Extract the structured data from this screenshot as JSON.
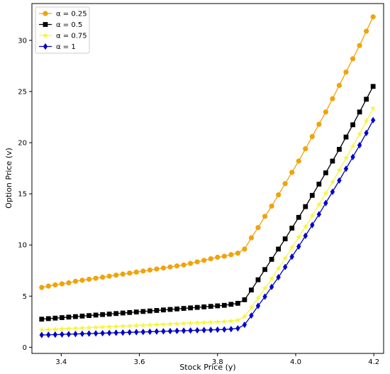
{
  "chart_data": {
    "type": "line",
    "title": "",
    "xlabel": "Stock Price (y)",
    "ylabel": "Option Price (v)",
    "xlim": [
      3.325,
      4.225
    ],
    "ylim": [
      -0.6,
      33.6
    ],
    "xticks": [
      3.4,
      3.6,
      3.8,
      4.0,
      4.2
    ],
    "xtick_labels": [
      "3.4",
      "3.6",
      "3.8",
      "4.0",
      "4.2"
    ],
    "yticks": [
      0,
      5,
      10,
      15,
      20,
      25,
      30
    ],
    "ytick_labels": [
      "0",
      "5",
      "10",
      "15",
      "20",
      "25",
      "30"
    ],
    "grid": false,
    "legend_position": "upper-left",
    "x": [
      3.35,
      3.3673,
      3.3846,
      3.4019,
      3.4192,
      3.4365,
      3.4538,
      3.4712,
      3.4885,
      3.5058,
      3.5231,
      3.5404,
      3.5577,
      3.575,
      3.5923,
      3.6096,
      3.6269,
      3.6442,
      3.6615,
      3.6788,
      3.6962,
      3.7135,
      3.7308,
      3.7481,
      3.7654,
      3.7827,
      3.8,
      3.8173,
      3.8346,
      3.8519,
      3.8692,
      3.8865,
      3.9038,
      3.9212,
      3.9385,
      3.9558,
      3.9731,
      3.9904,
      4.0077,
      4.025,
      4.0423,
      4.0596,
      4.0769,
      4.0942,
      4.1115,
      4.1288,
      4.1462,
      4.1635,
      4.1808,
      4.1981
    ],
    "series": [
      {
        "name": "α = 0.25",
        "color": "#f0a30a",
        "marker": "circle",
        "values": [
          5.85,
          5.98,
          6.1,
          6.2,
          6.3,
          6.45,
          6.55,
          6.65,
          6.75,
          6.85,
          6.95,
          7.05,
          7.15,
          7.25,
          7.35,
          7.45,
          7.55,
          7.65,
          7.75,
          7.85,
          7.95,
          8.05,
          8.2,
          8.35,
          8.5,
          8.65,
          8.8,
          8.9,
          9.05,
          9.2,
          9.6,
          10.7,
          11.7,
          12.8,
          13.8,
          14.9,
          16.0,
          17.1,
          18.2,
          19.4,
          20.6,
          21.8,
          23.0,
          24.3,
          25.6,
          26.9,
          28.2,
          29.5,
          30.9,
          32.3
        ]
      },
      {
        "name": "α = 0.5",
        "color": "#000000",
        "marker": "square",
        "values": [
          2.75,
          2.8,
          2.85,
          2.9,
          2.95,
          3.0,
          3.05,
          3.1,
          3.15,
          3.2,
          3.25,
          3.3,
          3.35,
          3.4,
          3.45,
          3.5,
          3.55,
          3.6,
          3.65,
          3.7,
          3.75,
          3.8,
          3.85,
          3.9,
          3.95,
          4.0,
          4.05,
          4.1,
          4.2,
          4.3,
          4.65,
          5.6,
          6.6,
          7.6,
          8.6,
          9.6,
          10.6,
          11.65,
          12.7,
          13.75,
          14.85,
          15.95,
          17.05,
          18.2,
          19.35,
          20.55,
          21.75,
          23.0,
          24.25,
          25.5
        ]
      },
      {
        "name": "α = 0.75",
        "color": "#f5f542",
        "marker": "star",
        "values": [
          1.7,
          1.73,
          1.76,
          1.79,
          1.82,
          1.85,
          1.88,
          1.91,
          1.94,
          1.97,
          2.0,
          2.03,
          2.06,
          2.09,
          2.12,
          2.15,
          2.18,
          2.21,
          2.24,
          2.27,
          2.3,
          2.33,
          2.36,
          2.39,
          2.42,
          2.45,
          2.48,
          2.51,
          2.56,
          2.65,
          3.0,
          3.9,
          4.8,
          5.75,
          6.7,
          7.7,
          8.7,
          9.75,
          10.75,
          11.8,
          12.85,
          13.95,
          15.05,
          16.15,
          17.3,
          18.5,
          19.65,
          20.85,
          22.1,
          23.35
        ]
      },
      {
        "name": "α = 1",
        "color": "#0000cc",
        "marker": "diamond",
        "values": [
          1.2,
          1.22,
          1.24,
          1.26,
          1.28,
          1.3,
          1.32,
          1.34,
          1.36,
          1.38,
          1.4,
          1.42,
          1.44,
          1.46,
          1.48,
          1.5,
          1.52,
          1.54,
          1.56,
          1.58,
          1.6,
          1.62,
          1.64,
          1.66,
          1.68,
          1.7,
          1.72,
          1.74,
          1.78,
          1.85,
          2.2,
          3.1,
          4.05,
          4.95,
          5.9,
          6.85,
          7.85,
          8.85,
          9.85,
          10.9,
          11.95,
          13.0,
          14.1,
          15.2,
          16.3,
          17.45,
          18.6,
          19.75,
          20.95,
          22.2
        ]
      }
    ]
  }
}
